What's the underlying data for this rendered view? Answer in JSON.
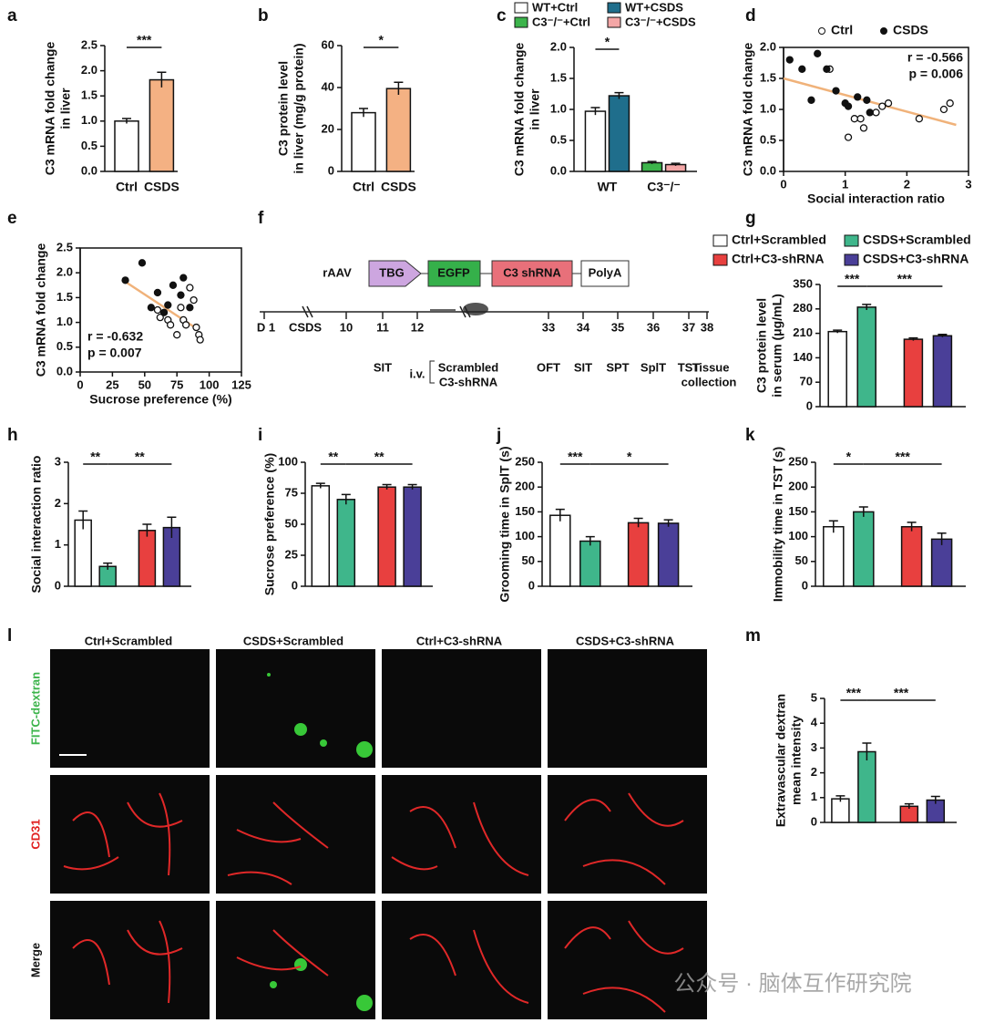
{
  "chart_data": [
    {
      "type": "bar",
      "label": "a",
      "ylabel": [
        "C3 mRNA fold change",
        "in liver"
      ],
      "categories": [
        "Ctrl",
        "CSDS"
      ],
      "values": [
        1.0,
        1.82
      ],
      "errors": [
        0.05,
        0.15
      ],
      "colors": [
        "#ffffff",
        "#f4b183"
      ],
      "ylim": [
        0,
        2.5
      ],
      "yticks": [
        {
          "value": 0,
          "label": "0.0"
        },
        0.5,
        {
          "value": 1,
          "label": "1.0"
        },
        1.5,
        {
          "value": 2,
          "label": "2.0"
        },
        2.5
      ],
      "significance": [
        {
          "from": 0,
          "to": 1,
          "label": "***"
        }
      ]
    },
    {
      "type": "bar",
      "label": "b",
      "ylabel": [
        "C3 protein level",
        "in liver (mg/g protein)"
      ],
      "categories": [
        "Ctrl",
        "CSDS"
      ],
      "values": [
        28,
        39.5
      ],
      "errors": [
        2,
        3
      ],
      "colors": [
        "#ffffff",
        "#f4b183"
      ],
      "ylim": [
        0,
        60
      ],
      "yticks": [
        0,
        20,
        40,
        60
      ],
      "significance": [
        {
          "from": 0,
          "to": 1,
          "label": "*"
        }
      ]
    },
    {
      "type": "grouped-bar",
      "label": "c",
      "ylabel": [
        "C3 mRNA fold change",
        "in liver"
      ],
      "categories": [
        "WT",
        "C3⁻/⁻"
      ],
      "series": [
        {
          "name": "WT+Ctrl",
          "color": "#ffffff",
          "values": [
            0.97,
            null
          ],
          "errors": [
            0.06,
            null
          ]
        },
        {
          "name": "WT+CSDS",
          "color": "#1f6e8c",
          "values": [
            1.22,
            null
          ],
          "errors": [
            0.05,
            null
          ]
        },
        {
          "name": "C3⁻/⁻+Ctrl",
          "color": "#3cb44b",
          "values": [
            null,
            0.14
          ],
          "errors": [
            null,
            0.02
          ]
        },
        {
          "name": "C3⁻/⁻+CSDS",
          "color": "#f4a6a6",
          "values": [
            null,
            0.11
          ],
          "errors": [
            null,
            0.02
          ]
        }
      ],
      "ylim": [
        0,
        2
      ],
      "yticks": [
        {
          "value": 0,
          "label": "0.0"
        },
        0.5,
        {
          "value": 1,
          "label": "1.0"
        },
        1.5,
        {
          "value": 2,
          "label": "2.0"
        }
      ],
      "significance": [
        {
          "from": 0,
          "to": 1,
          "label": "*"
        }
      ]
    },
    {
      "type": "scatter",
      "label": "d",
      "ylabel": [
        "C3 mRNA fold change"
      ],
      "xlabel": "Social interaction ratio",
      "series": [
        {
          "name": "Ctrl",
          "x": [
            0.75,
            1.05,
            1.15,
            1.25,
            1.3,
            1.5,
            1.6,
            1.7,
            2.2,
            2.6,
            2.7
          ],
          "y": [
            1.65,
            0.55,
            0.85,
            0.85,
            0.7,
            0.95,
            1.05,
            1.1,
            0.85,
            1.0,
            1.1
          ]
        },
        {
          "name": "CSDS",
          "x": [
            0.1,
            0.3,
            0.45,
            0.55,
            0.7,
            0.85,
            1.0,
            1.05,
            1.2,
            1.35,
            1.4
          ],
          "y": [
            1.8,
            1.65,
            1.15,
            1.9,
            1.65,
            1.3,
            1.1,
            1.05,
            1.2,
            1.15,
            0.95
          ]
        }
      ],
      "trend": {
        "x": [
          0,
          2.8
        ],
        "y": [
          1.5,
          0.75
        ],
        "color": "#f0b27a"
      },
      "annotations": [
        "r = -0.566",
        "p = 0.006"
      ],
      "xlim": [
        0,
        3
      ],
      "xticks": [
        0,
        1,
        2,
        3
      ],
      "ylim": [
        0,
        2
      ],
      "yticks": [
        {
          "value": 0,
          "label": "0.0"
        },
        0.5,
        {
          "value": 1,
          "label": "1.0"
        },
        1.5,
        {
          "value": 2,
          "label": "2.0"
        }
      ]
    },
    {
      "type": "scatter",
      "label": "e",
      "ylabel": [
        "C3 mRNA fold change"
      ],
      "xlabel": "Sucrose preference (%)",
      "series": [
        {
          "name": "Ctrl",
          "x": [
            60,
            62,
            68,
            70,
            75,
            78,
            80,
            82,
            85,
            88,
            90,
            92,
            93
          ],
          "y": [
            1.25,
            1.1,
            1.05,
            0.95,
            0.75,
            1.3,
            1.05,
            0.95,
            1.7,
            1.45,
            0.9,
            0.75,
            0.65
          ]
        },
        {
          "name": "CSDS",
          "x": [
            35,
            48,
            55,
            60,
            65,
            68,
            72,
            78,
            80,
            85
          ],
          "y": [
            1.85,
            2.2,
            1.3,
            1.6,
            1.2,
            1.35,
            1.75,
            1.55,
            1.9,
            1.3
          ]
        }
      ],
      "trend": {
        "x": [
          35,
          90
        ],
        "y": [
          1.82,
          0.88
        ],
        "color": "#f0b27a"
      },
      "annotations": [
        "r = -0.632",
        "p = 0.007"
      ],
      "xlim": [
        0,
        125
      ],
      "xticks": [
        0,
        25,
        50,
        75,
        100,
        125
      ],
      "ylim": [
        0,
        2.5
      ],
      "yticks": [
        {
          "value": 0,
          "label": "0.0"
        },
        0.5,
        {
          "value": 1,
          "label": "1.0"
        },
        1.5,
        {
          "value": 2,
          "label": "2.0"
        },
        2.5
      ]
    },
    {
      "type": "bar",
      "label": "g",
      "ylabel": [
        "C3 protein level",
        "in serum (μg/mL)"
      ],
      "legend": [
        "Ctrl+Scrambled",
        "CSDS+Scrambled",
        "Ctrl+C3-shRNA",
        "CSDS+C3-shRNA"
      ],
      "values": [
        215,
        285,
        193,
        203
      ],
      "errors": [
        4,
        8,
        4,
        4
      ],
      "colors": [
        "#ffffff",
        "#3fb68b",
        "#e8403f",
        "#4a3f98"
      ],
      "ylim": [
        0,
        350
      ],
      "yticks": [
        0,
        70,
        140,
        210,
        280,
        350
      ],
      "significance": [
        {
          "from": 0,
          "to": 1,
          "label": "***"
        },
        {
          "from": 1,
          "to": 3,
          "label": "***"
        }
      ]
    },
    {
      "type": "bar",
      "label": "h",
      "ylabel": [
        "Social interaction ratio"
      ],
      "values": [
        1.6,
        0.48,
        1.35,
        1.42
      ],
      "errors": [
        0.22,
        0.08,
        0.15,
        0.25
      ],
      "colors": [
        "#ffffff",
        "#3fb68b",
        "#e8403f",
        "#4a3f98"
      ],
      "ylim": [
        0,
        3
      ],
      "yticks": [
        0,
        1,
        2,
        3
      ],
      "significance": [
        {
          "from": 0,
          "to": 1,
          "label": "**"
        },
        {
          "from": 1,
          "to": 3,
          "label": "**"
        }
      ]
    },
    {
      "type": "bar",
      "label": "i",
      "ylabel": [
        "Sucrose preference (%)"
      ],
      "values": [
        81,
        70,
        80,
        80
      ],
      "errors": [
        2,
        4,
        2,
        2
      ],
      "colors": [
        "#ffffff",
        "#3fb68b",
        "#e8403f",
        "#4a3f98"
      ],
      "ylim": [
        0,
        100
      ],
      "yticks": [
        0,
        25,
        50,
        75,
        100
      ],
      "significance": [
        {
          "from": 0,
          "to": 1,
          "label": "**"
        },
        {
          "from": 1,
          "to": 3,
          "label": "**"
        }
      ]
    },
    {
      "type": "bar",
      "label": "j",
      "ylabel": [
        "Grooming time in SplT (s)"
      ],
      "values": [
        143,
        91,
        128,
        127
      ],
      "errors": [
        12,
        9,
        9,
        7
      ],
      "colors": [
        "#ffffff",
        "#3fb68b",
        "#e8403f",
        "#4a3f98"
      ],
      "ylim": [
        0,
        250
      ],
      "yticks": [
        0,
        50,
        100,
        150,
        200,
        250
      ],
      "significance": [
        {
          "from": 0,
          "to": 1,
          "label": "***"
        },
        {
          "from": 1,
          "to": 3,
          "label": "*"
        }
      ]
    },
    {
      "type": "bar",
      "label": "k",
      "ylabel": [
        "Immobility time in TST (s)"
      ],
      "values": [
        120,
        150,
        120,
        95
      ],
      "errors": [
        12,
        10,
        9,
        12
      ],
      "colors": [
        "#ffffff",
        "#3fb68b",
        "#e8403f",
        "#4a3f98"
      ],
      "ylim": [
        0,
        250
      ],
      "yticks": [
        0,
        50,
        100,
        150,
        200,
        250
      ],
      "significance": [
        {
          "from": 0,
          "to": 1,
          "label": "*"
        },
        {
          "from": 1,
          "to": 3,
          "label": "***"
        }
      ]
    },
    {
      "type": "bar",
      "label": "m",
      "ylabel": [
        "Extravascular dextran",
        "mean intensity"
      ],
      "values": [
        0.95,
        2.85,
        0.65,
        0.9
      ],
      "errors": [
        0.12,
        0.35,
        0.1,
        0.15
      ],
      "colors": [
        "#ffffff",
        "#3fb68b",
        "#e8403f",
        "#4a3f98"
      ],
      "ylim": [
        0,
        5
      ],
      "yticks": [
        0,
        1,
        2,
        3,
        4,
        5
      ],
      "significance": [
        {
          "from": 0,
          "to": 1,
          "label": "***"
        },
        {
          "from": 1,
          "to": 3,
          "label": "***"
        }
      ]
    }
  ],
  "diagram": {
    "label": "f",
    "vector": "rAAV",
    "elements": [
      "TBG",
      "EGFP",
      "C3 shRNA",
      "PolyA"
    ],
    "days": [
      "D 1",
      "10",
      "11",
      "12",
      "33",
      "34",
      "35",
      "36",
      "37",
      "38"
    ],
    "events": [
      "CSDS",
      "SIT",
      "i.v.",
      "Scrambled",
      "C3-shRNA",
      "OFT",
      "SIT",
      "SPT",
      "SplT",
      "TST",
      "Tissue",
      "collection"
    ]
  },
  "images": {
    "label": "l",
    "columns": [
      "Ctrl+Scrambled",
      "CSDS+Scrambled",
      "Ctrl+C3-shRNA",
      "CSDS+C3-shRNA"
    ],
    "rows": [
      "FITC-dextran",
      "CD31",
      "Merge"
    ]
  },
  "watermark": "公众号 · 脑体互作研究院"
}
